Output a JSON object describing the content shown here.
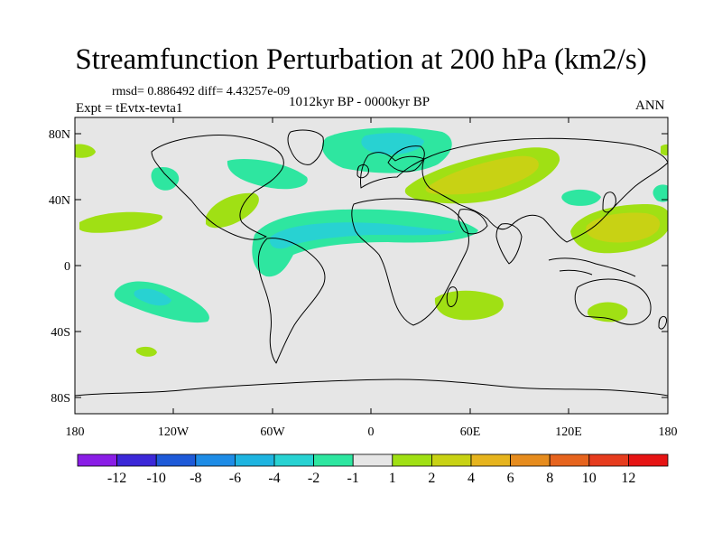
{
  "title": "Streamfunction Perturbation at 200 hPa (km2/s)",
  "stats": "rmsd= 0.886492 diff= 4.43257e-09",
  "experiment": "Expt = tEvtx-tevta1",
  "period": "1012kyr BP - 0000kyr BP",
  "season": "ANN",
  "lat_ticks": [
    "80N",
    "40N",
    "0",
    "40S",
    "80S"
  ],
  "lon_ticks": [
    "180",
    "120W",
    "60W",
    "0",
    "60E",
    "120E",
    "180"
  ],
  "colorbar": {
    "labels": [
      "-12",
      "-10",
      "-8",
      "-6",
      "-4",
      "-2",
      "-1",
      "1",
      "2",
      "4",
      "6",
      "8",
      "10",
      "12"
    ],
    "colors": [
      "#8a1ee6",
      "#3c28d8",
      "#1e5ad8",
      "#1e8ce6",
      "#1eb4e0",
      "#28d2d2",
      "#2ee6a0",
      "#e6e6e6",
      "#a0e014",
      "#c8d214",
      "#e6b41e",
      "#e68c1e",
      "#e6641e",
      "#e63c1e",
      "#e61414"
    ]
  },
  "colors": {
    "background": "#e6e6e6",
    "neg1": "#2ee6a0",
    "neg2": "#28d2d2",
    "pos1": "#a0e014",
    "pos2": "#c8d214"
  }
}
